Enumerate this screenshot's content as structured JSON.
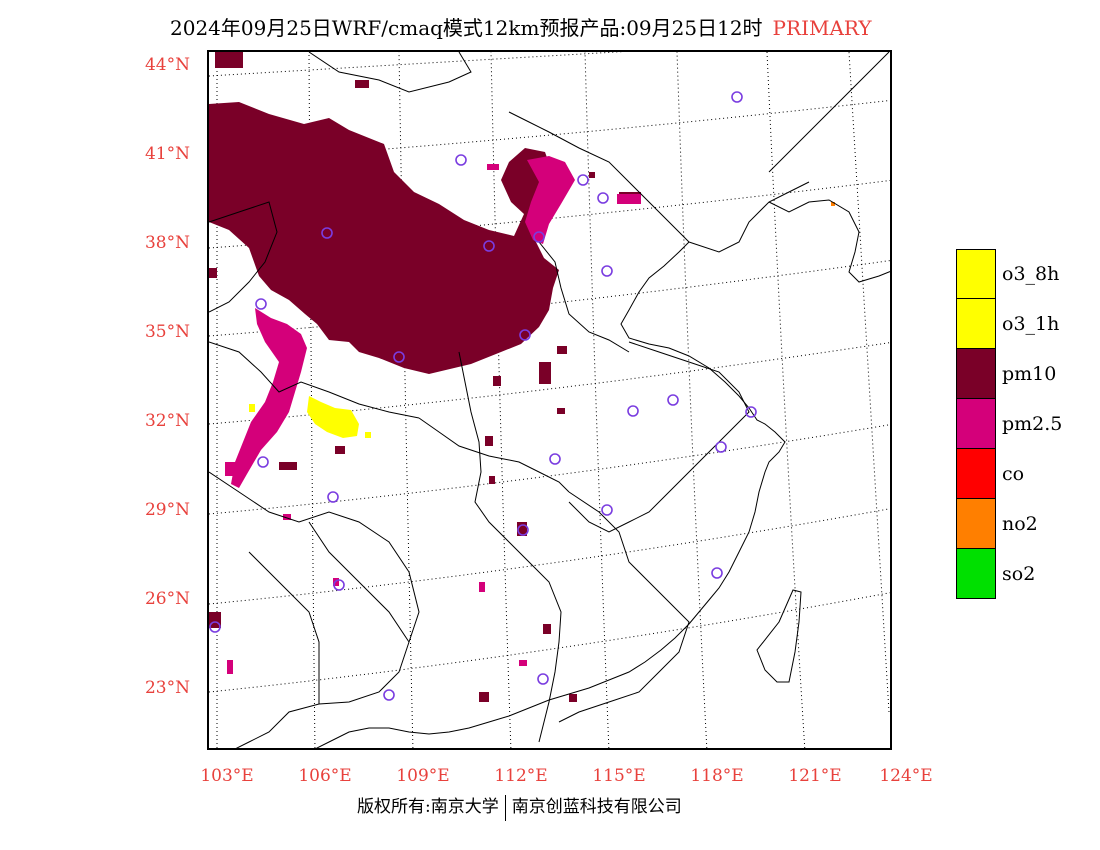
{
  "title": {
    "text": "2024年09月25日WRF/cmaq模式12km预报产品:09月25日12时",
    "tag": "PRIMARY"
  },
  "map": {
    "lat_labels": [
      "44°N",
      "41°N",
      "38°N",
      "35°N",
      "32°N",
      "29°N",
      "26°N",
      "23°N"
    ],
    "lon_labels": [
      "103°E",
      "106°E",
      "109°E",
      "112°E",
      "115°E",
      "118°E",
      "121°E",
      "124°E"
    ]
  },
  "legend": [
    {
      "label": "o3_8h",
      "color": "#ffff00"
    },
    {
      "label": "o3_1h",
      "color": "#ffff00"
    },
    {
      "label": "pm10",
      "color": "#7a0028"
    },
    {
      "label": "pm2.5",
      "color": "#d4007a"
    },
    {
      "label": "co",
      "color": "#ff0000"
    },
    {
      "label": "no2",
      "color": "#ff7f00"
    },
    {
      "label": "so2",
      "color": "#00e000"
    }
  ],
  "footer": {
    "left": "版权所有:南京大学",
    "right": "南京创蓝科技有限公司"
  }
}
